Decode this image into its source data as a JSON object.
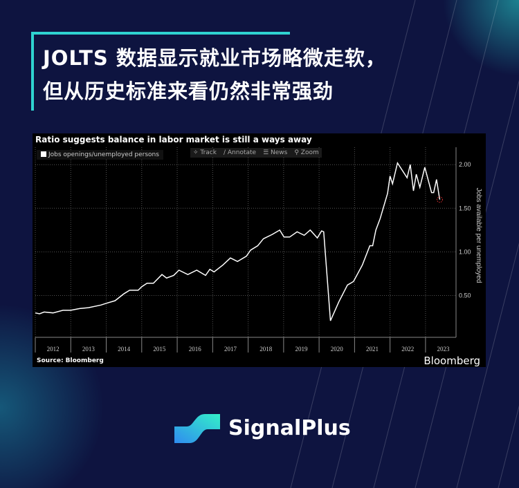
{
  "headline": {
    "line1": "JOLTS 数据显示就业市场略微走软，",
    "line2": "但从历史标准来看仍然非常强劲"
  },
  "brand": {
    "name": "SignalPlus",
    "accent": "#2fd3d0"
  },
  "chart_data": {
    "type": "line",
    "title": "Ratio suggests balance in labor market is still a ways away",
    "legend": "Jobs openings/unemployed persons",
    "legend_placement": "top-left",
    "toolbar": [
      "Track",
      "Annotate",
      "News",
      "Zoom"
    ],
    "ylabel": "Jobs available per unemployed",
    "ylim": [
      0.02,
      2.2
    ],
    "yticks": [
      "2.00",
      "1.50",
      "1.00",
      "0.50"
    ],
    "ytick_values": [
      2.0,
      1.5,
      1.0,
      0.5
    ],
    "xticks": [
      "2012",
      "2013",
      "2014",
      "2015",
      "2016",
      "2017",
      "2018",
      "2019",
      "2020",
      "2021",
      "2022",
      "2023"
    ],
    "xlim": [
      2012.0,
      2023.86
    ],
    "grid": true,
    "source": "Source: Bloomberg",
    "watermark": "Bloomberg",
    "line_color": "#ffffff",
    "highlight_color": "#e03030",
    "series": [
      {
        "x": [
          2012.0,
          2012.12,
          2012.25,
          2012.5,
          2012.78,
          2013.0,
          2013.25,
          2013.5,
          2013.85,
          2014.0,
          2014.25,
          2014.5,
          2014.66,
          2014.9,
          2015.0,
          2015.15,
          2015.33,
          2015.57,
          2015.7,
          2015.9,
          2016.05,
          2016.3,
          2016.55,
          2016.8,
          2016.92,
          2017.04,
          2017.29,
          2017.5,
          2017.7,
          2017.95,
          2018.07,
          2018.27,
          2018.43,
          2018.68,
          2018.89,
          2019.01,
          2019.17,
          2019.38,
          2019.58,
          2019.75,
          2019.95,
          2020.07,
          2020.13,
          2020.32,
          2020.56,
          2020.8,
          2020.97,
          2021.22,
          2021.43,
          2021.51,
          2021.6,
          2021.72,
          2021.93,
          2022.0,
          2022.07,
          2022.21,
          2022.48,
          2022.57,
          2022.66,
          2022.74,
          2022.84,
          2022.98,
          2023.17,
          2023.23,
          2023.31,
          2023.4
        ],
        "y": [
          0.3,
          0.29,
          0.31,
          0.3,
          0.33,
          0.33,
          0.35,
          0.36,
          0.39,
          0.41,
          0.44,
          0.52,
          0.56,
          0.56,
          0.6,
          0.64,
          0.64,
          0.74,
          0.7,
          0.73,
          0.79,
          0.74,
          0.79,
          0.73,
          0.8,
          0.77,
          0.85,
          0.93,
          0.89,
          0.95,
          1.02,
          1.07,
          1.15,
          1.2,
          1.25,
          1.17,
          1.17,
          1.23,
          1.19,
          1.25,
          1.16,
          1.24,
          1.23,
          0.21,
          0.43,
          0.62,
          0.66,
          0.85,
          1.07,
          1.07,
          1.25,
          1.38,
          1.67,
          1.87,
          1.78,
          2.02,
          1.85,
          2.0,
          1.7,
          1.89,
          1.74,
          1.97,
          1.68,
          1.68,
          1.83,
          1.6
        ]
      }
    ]
  }
}
